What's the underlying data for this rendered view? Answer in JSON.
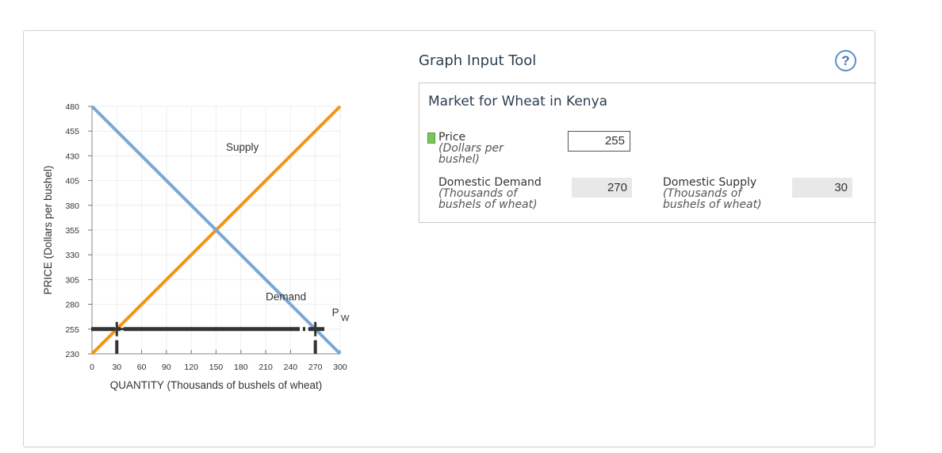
{
  "tool": {
    "title": "Graph Input Tool",
    "help_symbol": "?",
    "heading": "Market for Wheat in Kenya",
    "price_label": "Price",
    "price_sub1": "(Dollars per",
    "price_sub2": "bushel)",
    "price_value": "255",
    "demand_label": "Domestic Demand",
    "demand_sub1": "(Thousands of",
    "demand_sub2": "bushels of wheat)",
    "demand_value": "270",
    "supply_label": "Domestic Supply",
    "supply_sub1": "(Thousands of",
    "supply_sub2": "bushels of wheat)",
    "supply_value": "30"
  },
  "colors": {
    "demand": "#7ba7d3",
    "supply": "#f5940f",
    "world_price": "#333333",
    "input_swatch": "#7cc35a"
  },
  "chart_data": {
    "type": "line",
    "xlabel": "QUANTITY (Thousands of bushels of wheat)",
    "ylabel": "PRICE (Dollars per bushel)",
    "xlim": [
      0,
      300
    ],
    "ylim": [
      230,
      480
    ],
    "xticks": [
      0,
      30,
      60,
      90,
      120,
      150,
      180,
      210,
      240,
      270,
      300
    ],
    "yticks": [
      230,
      255,
      280,
      305,
      330,
      355,
      380,
      405,
      430,
      455,
      480
    ],
    "grid": true,
    "series": [
      {
        "name": "Supply",
        "x": [
          0,
          300
        ],
        "y": [
          230,
          480
        ]
      },
      {
        "name": "Demand",
        "x": [
          0,
          300
        ],
        "y": [
          480,
          230
        ]
      }
    ],
    "world_price": {
      "label_main": "P",
      "label_sub": "W",
      "value": 255,
      "demand_point": [
        270,
        255
      ],
      "supply_point": [
        30,
        255
      ]
    }
  }
}
